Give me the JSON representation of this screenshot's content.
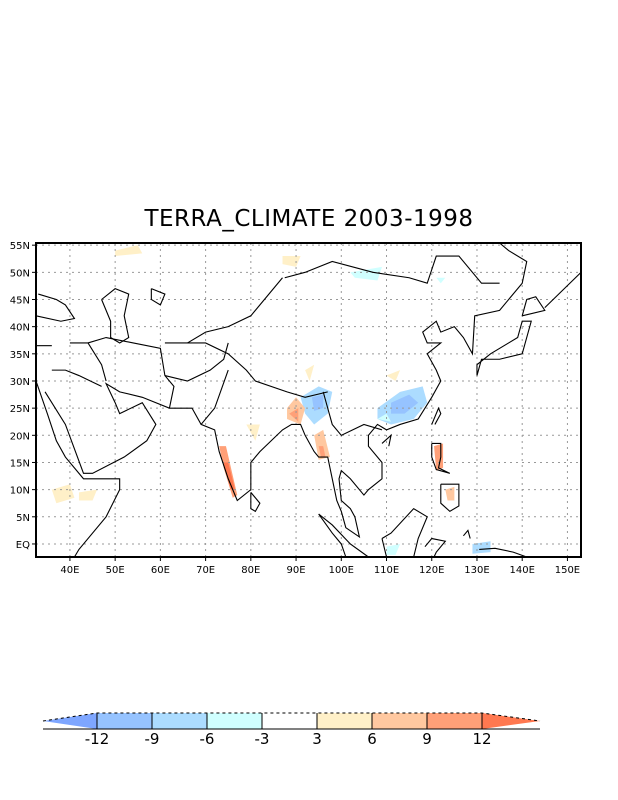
{
  "title": "TERRA_CLIMATE 2003-1998",
  "map": {
    "lon_range": [
      32.5,
      153
    ],
    "lat_range": [
      -2.4,
      55.4
    ],
    "lat_labels": [
      {
        "lat": 55,
        "label": "55N"
      },
      {
        "lat": 50,
        "label": "50N"
      },
      {
        "lat": 45,
        "label": "45N"
      },
      {
        "lat": 40,
        "label": "40N"
      },
      {
        "lat": 35,
        "label": "35N"
      },
      {
        "lat": 30,
        "label": "30N"
      },
      {
        "lat": 25,
        "label": "25N"
      },
      {
        "lat": 20,
        "label": "20N"
      },
      {
        "lat": 15,
        "label": "15N"
      },
      {
        "lat": 10,
        "label": "10N"
      },
      {
        "lat": 5,
        "label": "5N"
      },
      {
        "lat": 0,
        "label": "EQ"
      }
    ],
    "lon_labels": [
      {
        "lon": 40,
        "label": "40E"
      },
      {
        "lon": 50,
        "label": "50E"
      },
      {
        "lon": 60,
        "label": "60E"
      },
      {
        "lon": 70,
        "label": "70E"
      },
      {
        "lon": 80,
        "label": "80E"
      },
      {
        "lon": 90,
        "label": "90E"
      },
      {
        "lon": 100,
        "label": "100E"
      },
      {
        "lon": 110,
        "label": "110E"
      },
      {
        "lon": 120,
        "label": "120E"
      },
      {
        "lon": 130,
        "label": "130E"
      },
      {
        "lon": 140,
        "label": "140E"
      },
      {
        "lon": 150,
        "label": "150E"
      }
    ]
  },
  "colorbar": {
    "levels": [
      "-12",
      "-9",
      "-6",
      "-3",
      "3",
      "6",
      "9",
      "12"
    ],
    "colors": [
      "#7ea6ff",
      "#96c3ff",
      "#acdcff",
      "#d0ffff",
      "#ffffff",
      "#fff0c8",
      "#ffc8a0",
      "#ffa078",
      "#ff7850"
    ]
  }
}
